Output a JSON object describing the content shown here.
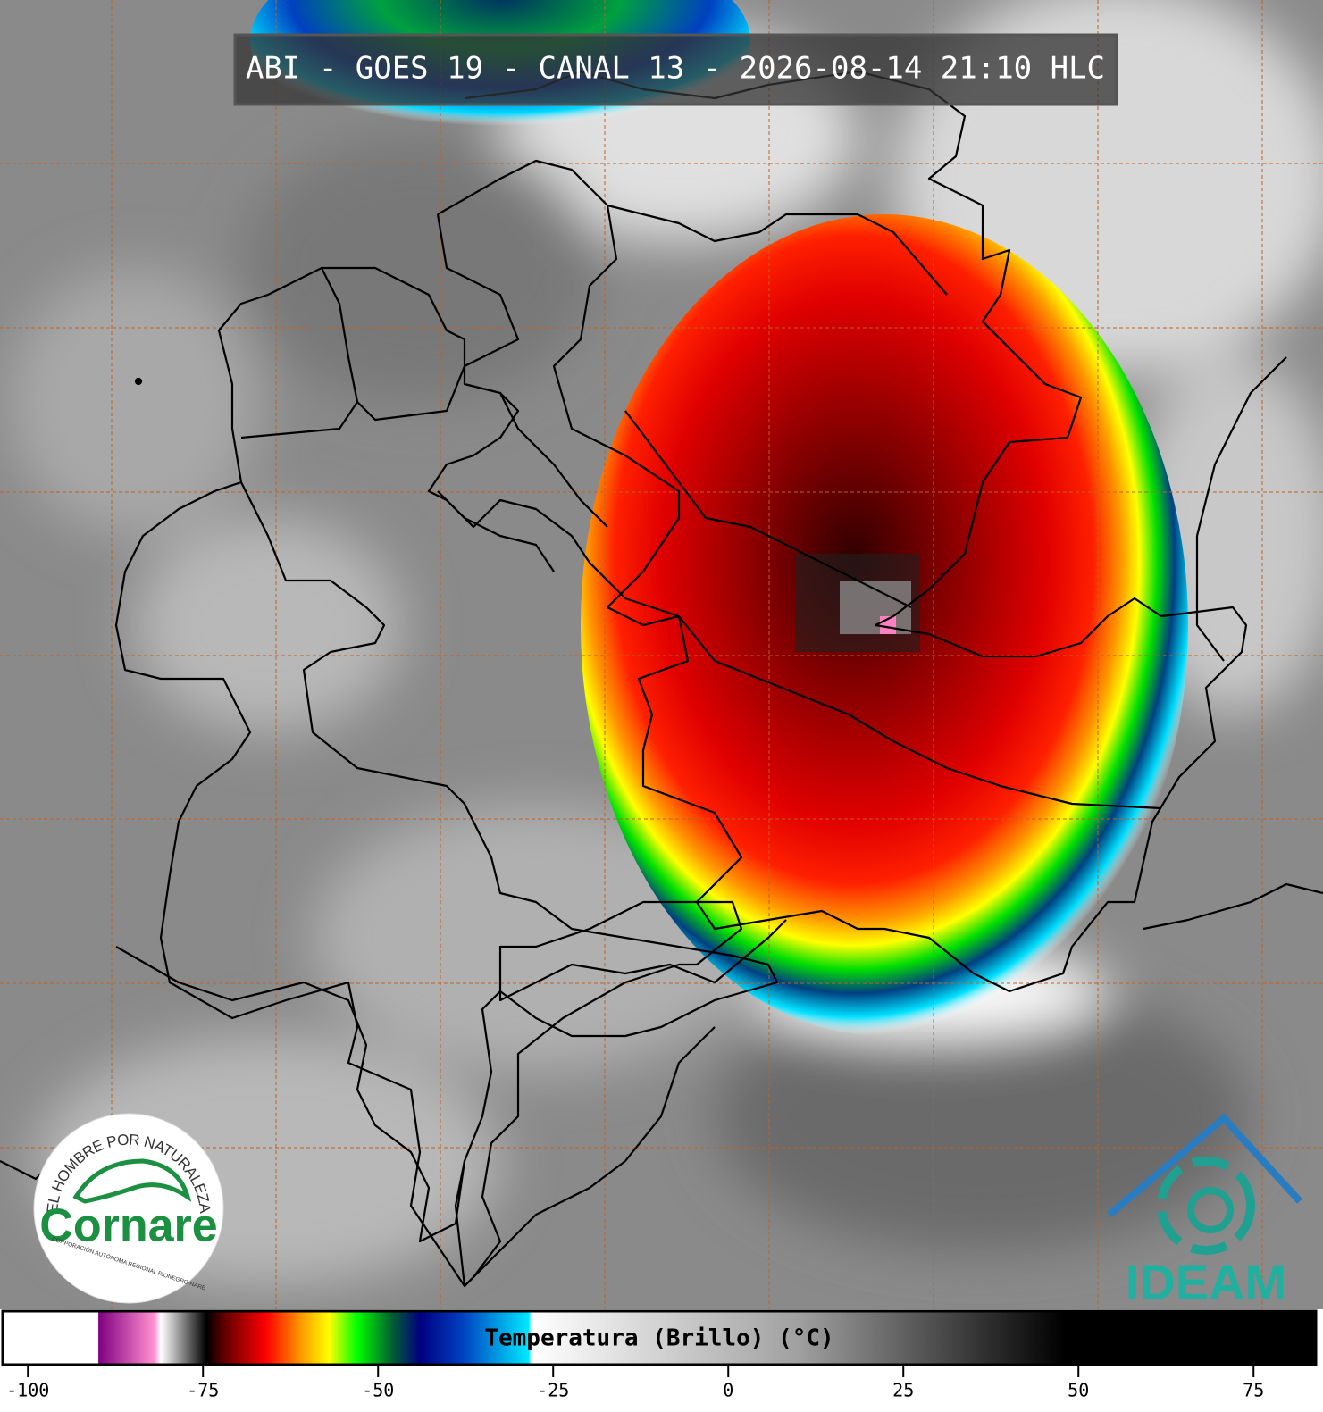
{
  "title": "ABI - GOES 19 - CANAL 13 - 2026-08-14 21:10 HLC",
  "logos": {
    "cornare": {
      "motto": "EL HOMBRE POR NATURALEZA",
      "name": "Cornare",
      "subtitle": "CORPORACIÓN AUTÓNOMA REGIONAL RIONEGRO-NARE"
    },
    "ideam": {
      "name": "IDEAM"
    }
  },
  "colorbar": {
    "label": "Temperatura (Brillo) (°C)",
    "lim": [
      -103.6,
      83.9
    ],
    "ticks": [
      -100,
      -75,
      -50,
      -25,
      0,
      25,
      50,
      75
    ],
    "stops": [
      {
        "value": -103.6,
        "color": "#ffffff"
      },
      {
        "value": -90,
        "color": "#ffffff"
      },
      {
        "value": -89.9,
        "color": "#800080"
      },
      {
        "value": -82,
        "color": "#ff90d0"
      },
      {
        "value": -81,
        "color": "#ffffff"
      },
      {
        "value": -74.5,
        "color": "#000000"
      },
      {
        "value": -72,
        "color": "#600000"
      },
      {
        "value": -66,
        "color": "#ff0000"
      },
      {
        "value": -61,
        "color": "#ff9900"
      },
      {
        "value": -57,
        "color": "#ffff00"
      },
      {
        "value": -53,
        "color": "#00ff00"
      },
      {
        "value": -48,
        "color": "#006030"
      },
      {
        "value": -44,
        "color": "#000080"
      },
      {
        "value": -38,
        "color": "#0040c0"
      },
      {
        "value": -28.5,
        "color": "#00e8ff"
      },
      {
        "value": -28,
        "color": "#ffffff"
      },
      {
        "value": 10,
        "color": "#a0a0a0"
      },
      {
        "value": 48,
        "color": "#000000"
      },
      {
        "value": 83.9,
        "color": "#000000"
      }
    ]
  }
}
